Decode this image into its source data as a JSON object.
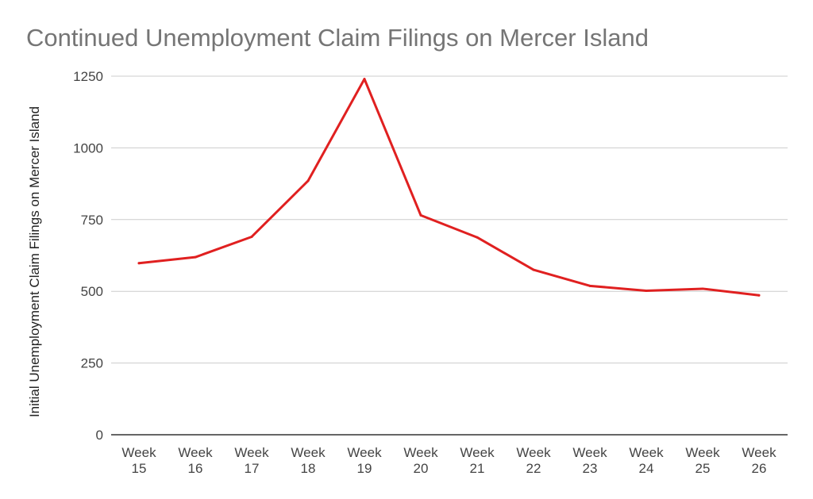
{
  "chart_data": {
    "type": "line",
    "title": "Continued Unemployment Claim Filings on Mercer Island",
    "xlabel": "",
    "ylabel": "Initial Unemployment Claim Filings on Mercer Island",
    "categories": [
      [
        "Week",
        "15"
      ],
      [
        "Week",
        "16"
      ],
      [
        "Week",
        "17"
      ],
      [
        "Week",
        "18"
      ],
      [
        "Week",
        "19"
      ],
      [
        "Week",
        "20"
      ],
      [
        "Week",
        "21"
      ],
      [
        "Week",
        "22"
      ],
      [
        "Week",
        "23"
      ],
      [
        "Week",
        "24"
      ],
      [
        "Week",
        "25"
      ],
      [
        "Week",
        "26"
      ]
    ],
    "series": [
      {
        "color": "#e02020",
        "values": [
          598,
          619,
          690,
          885,
          1240,
          765,
          688,
          575,
          519,
          502,
          509,
          486
        ]
      }
    ],
    "ylim": [
      0,
      1250
    ],
    "yticks": [
      0,
      250,
      500,
      750,
      1000,
      1250
    ],
    "grid": true,
    "legend": "none"
  }
}
